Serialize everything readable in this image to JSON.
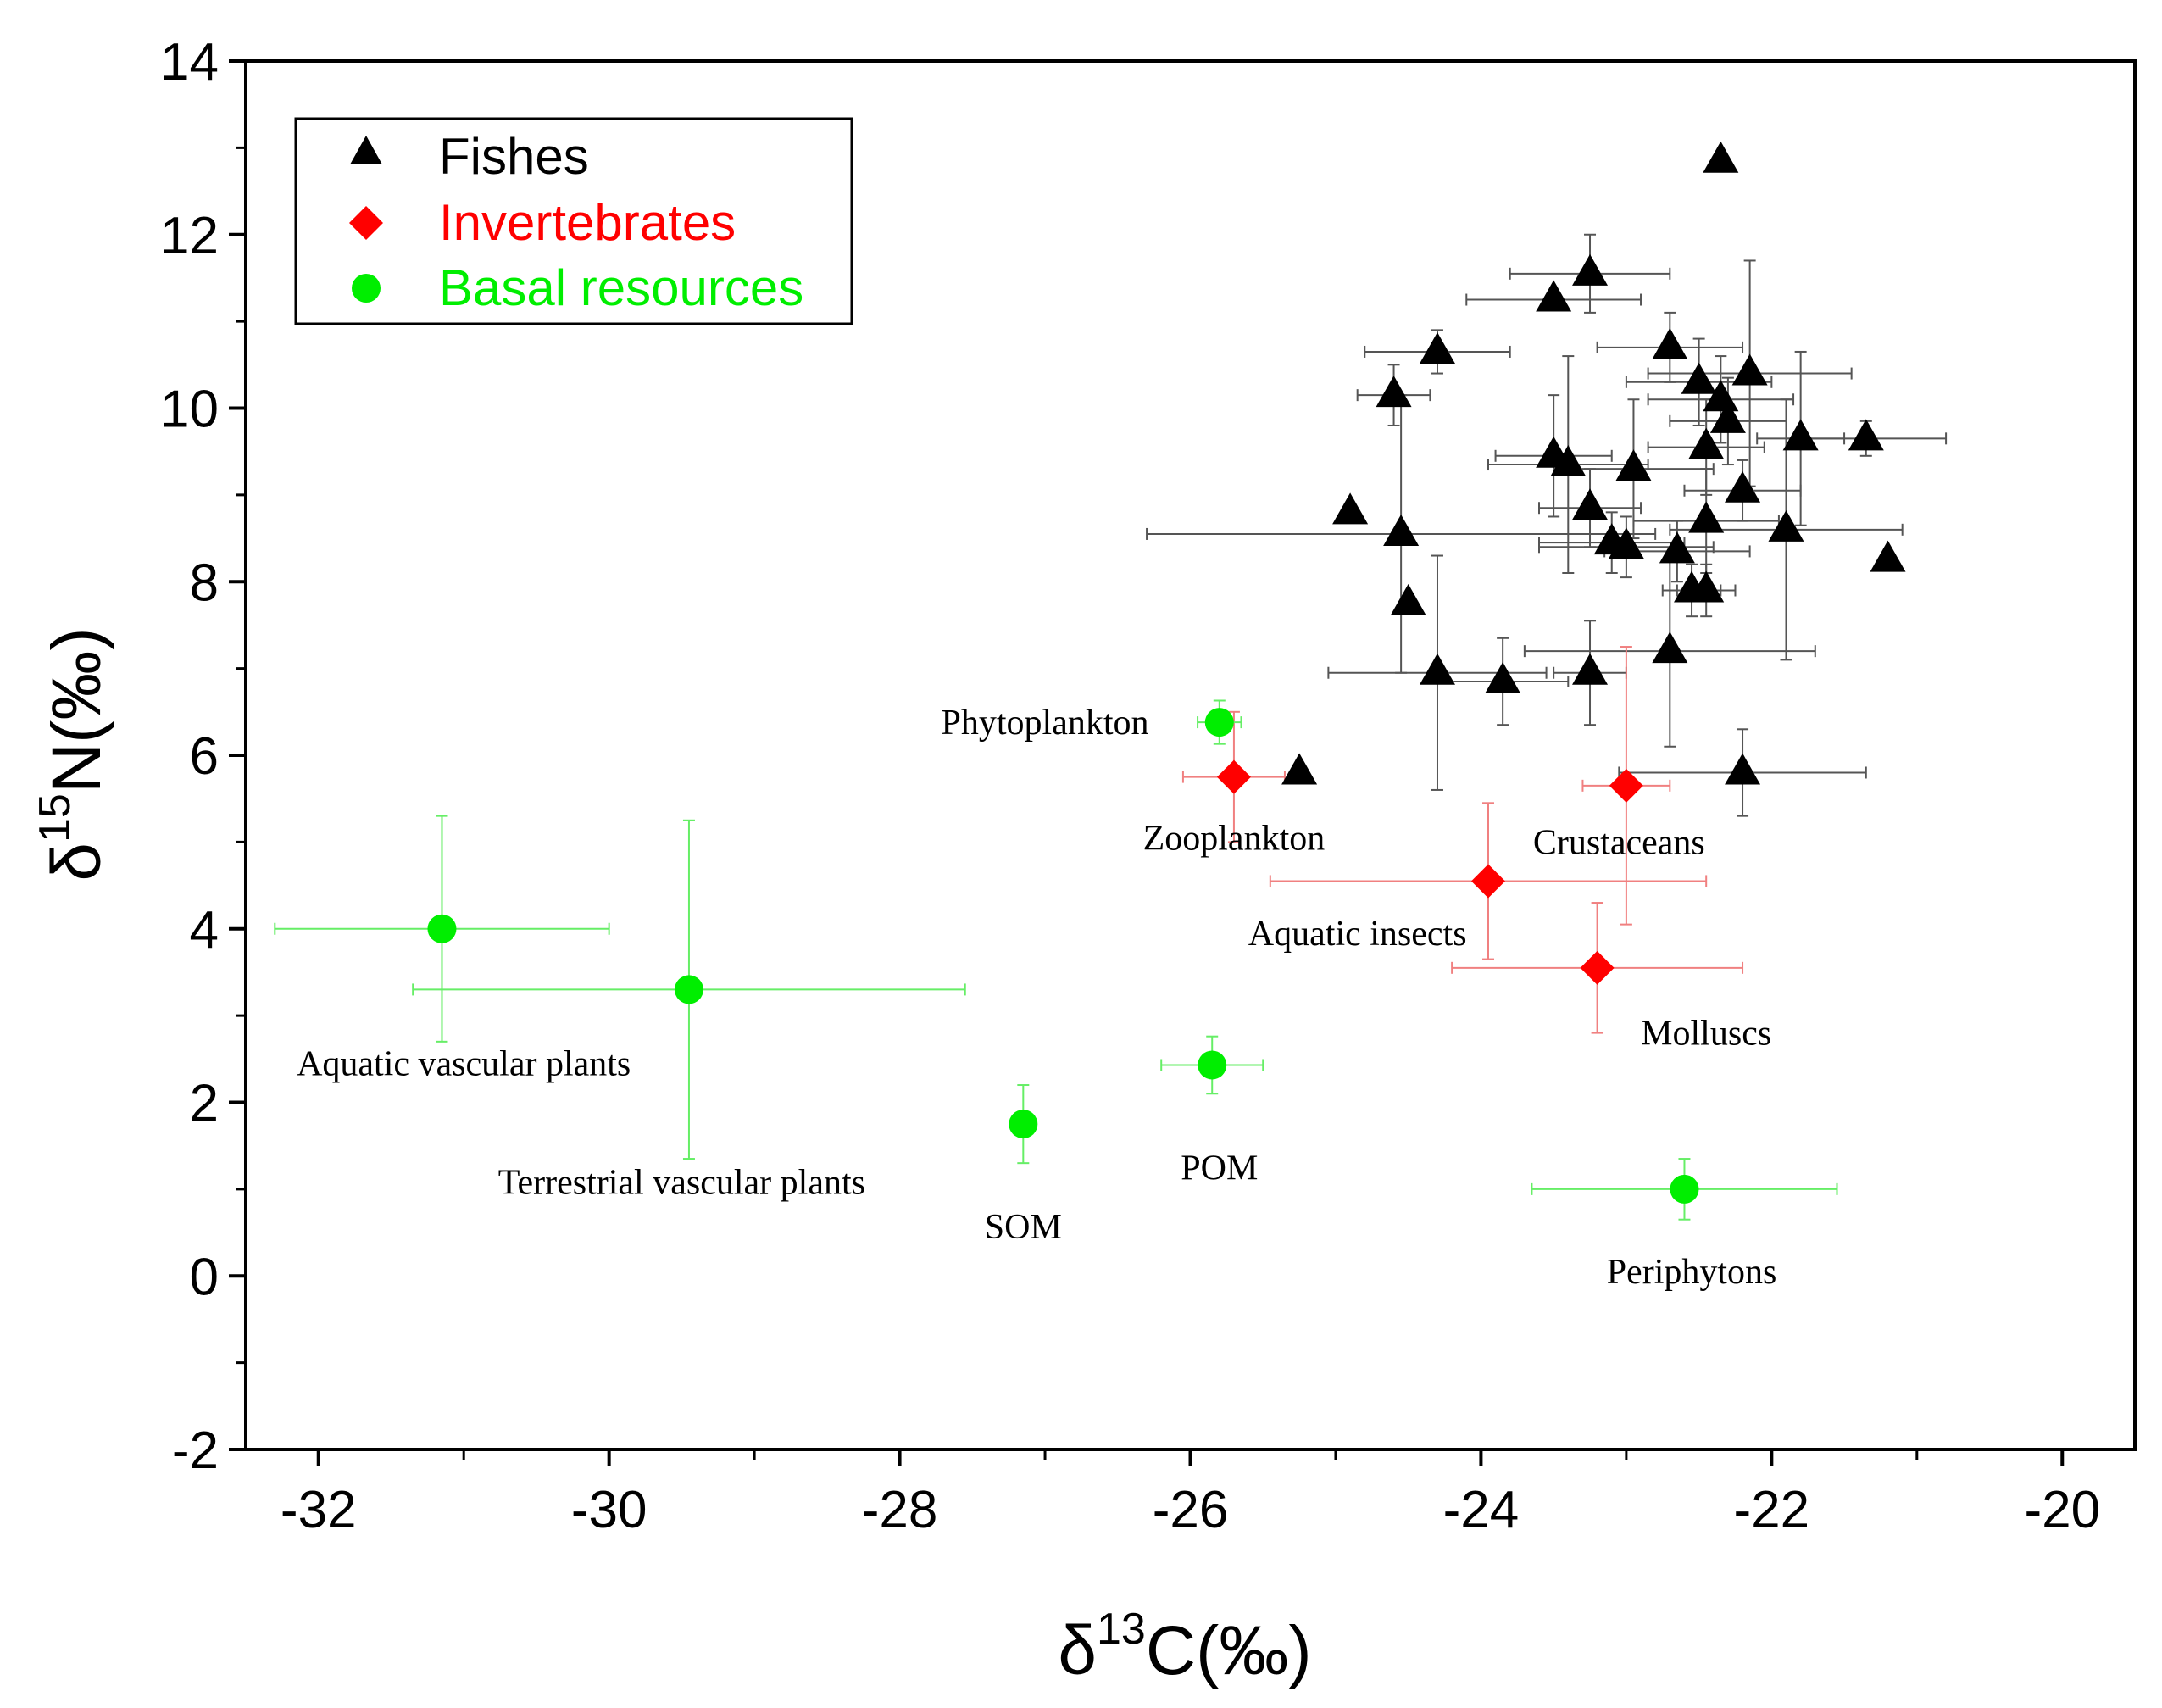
{
  "chart_data": {
    "type": "scatter",
    "title": "",
    "xlabel": {
      "base": "δ",
      "sup": "13",
      "rest": "C(‰)"
    },
    "ylabel": {
      "base": "δ",
      "sup": "15",
      "rest": "N(‰)"
    },
    "xlim": [
      -32.5,
      -19.5
    ],
    "ylim": [
      -2,
      14
    ],
    "xticks": [
      -32,
      -30,
      -28,
      -26,
      -24,
      -22,
      -20
    ],
    "yticks": [
      -2,
      0,
      2,
      4,
      6,
      8,
      10,
      12,
      14
    ],
    "xtick_labels": [
      "-32",
      "-30",
      "-28",
      "-26",
      "-24",
      "-22",
      "-20"
    ],
    "ytick_labels": [
      "-2",
      "0",
      "2",
      "4",
      "6",
      "8",
      "10",
      "12",
      "14"
    ],
    "legend_position": "top-left",
    "colors": {
      "fishes": "#000000",
      "invertebrates": "#ff0000",
      "basal": "#00ee00",
      "fish_err": "#555555",
      "inv_err": "#f08080",
      "basal_err": "#66ee66"
    },
    "series": [
      {
        "name": "Fishes",
        "marker": "triangle",
        "points": [
          {
            "x": -22.35,
            "y": 12.85,
            "xerr": 0,
            "yerr": 0
          },
          {
            "x": -23.25,
            "y": 11.55,
            "xerr": 0.55,
            "yerr": 0.45
          },
          {
            "x": -23.5,
            "y": 11.25,
            "xerr": 0.6,
            "yerr": 0
          },
          {
            "x": -24.3,
            "y": 10.65,
            "xerr": 0.5,
            "yerr": 0.25
          },
          {
            "x": -24.6,
            "y": 10.15,
            "xerr": 0.25,
            "yerr": 0.35
          },
          {
            "x": -22.7,
            "y": 10.7,
            "xerr": 0.5,
            "yerr": 0.4
          },
          {
            "x": -22.5,
            "y": 10.3,
            "xerr": 0.5,
            "yerr": 0.5
          },
          {
            "x": -22.35,
            "y": 10.1,
            "xerr": 0.5,
            "yerr": 0.5
          },
          {
            "x": -22.15,
            "y": 10.4,
            "xerr": 0.7,
            "yerr": 1.3
          },
          {
            "x": -22.3,
            "y": 9.85,
            "xerr": 0.4,
            "yerr": 0.5
          },
          {
            "x": -22.45,
            "y": 9.55,
            "xerr": 0.4,
            "yerr": 0.55
          },
          {
            "x": -21.8,
            "y": 9.65,
            "xerr": 0.3,
            "yerr": 1.0
          },
          {
            "x": -21.35,
            "y": 9.65,
            "xerr": 0.55,
            "yerr": 0.2
          },
          {
            "x": -23.5,
            "y": 9.45,
            "xerr": 0.4,
            "yerr": 0.7
          },
          {
            "x": -23.4,
            "y": 9.35,
            "xerr": 0.55,
            "yerr": 1.25
          },
          {
            "x": -22.95,
            "y": 9.3,
            "xerr": 0.55,
            "yerr": 0.8
          },
          {
            "x": -23.25,
            "y": 8.85,
            "xerr": 0.35,
            "yerr": 0.45
          },
          {
            "x": -22.2,
            "y": 9.05,
            "xerr": 0.4,
            "yerr": 0.35
          },
          {
            "x": -22.45,
            "y": 8.7,
            "xerr": 0.5,
            "yerr": 0.6
          },
          {
            "x": -24.9,
            "y": 8.8,
            "xerr": 0,
            "yerr": 0
          },
          {
            "x": -24.55,
            "y": 8.55,
            "xerr": 1.75,
            "yerr": 1.6
          },
          {
            "x": -21.9,
            "y": 8.6,
            "xerr": 0.8,
            "yerr": 1.5
          },
          {
            "x": -23.1,
            "y": 8.45,
            "xerr": 0.5,
            "yerr": 0.35
          },
          {
            "x": -23.0,
            "y": 8.4,
            "xerr": 0.6,
            "yerr": 0.35
          },
          {
            "x": -22.65,
            "y": 8.35,
            "xerr": 0.5,
            "yerr": 0.35
          },
          {
            "x": -21.2,
            "y": 8.25,
            "xerr": 0,
            "yerr": 0
          },
          {
            "x": -22.55,
            "y": 7.9,
            "xerr": 0.2,
            "yerr": 0.3
          },
          {
            "x": -22.45,
            "y": 7.9,
            "xerr": 0.2,
            "yerr": 0.3
          },
          {
            "x": -24.5,
            "y": 7.75,
            "xerr": 0,
            "yerr": 0
          },
          {
            "x": -22.7,
            "y": 7.2,
            "xerr": 1.0,
            "yerr": 1.1
          },
          {
            "x": -24.3,
            "y": 6.95,
            "xerr": 0.75,
            "yerr": 1.35
          },
          {
            "x": -23.85,
            "y": 6.85,
            "xerr": 0.45,
            "yerr": 0.5
          },
          {
            "x": -23.25,
            "y": 6.95,
            "xerr": 0.25,
            "yerr": 0.6
          },
          {
            "x": -25.25,
            "y": 5.8,
            "xerr": 0,
            "yerr": 0
          },
          {
            "x": -22.2,
            "y": 5.8,
            "xerr": 0.85,
            "yerr": 0.5
          }
        ]
      },
      {
        "name": "Invertebrates",
        "marker": "diamond",
        "points": [
          {
            "x": -25.7,
            "y": 5.75,
            "xerr": 0.35,
            "yerr": 0.75,
            "label": "Zooplankton"
          },
          {
            "x": -23.0,
            "y": 5.65,
            "xerr": 0.3,
            "yerr": 1.6,
            "label": "Crustaceans"
          },
          {
            "x": -23.95,
            "y": 4.55,
            "xerr": 1.5,
            "yerr": 0.9,
            "label": "Aquatic insects"
          },
          {
            "x": -23.2,
            "y": 3.55,
            "xerr": 1.0,
            "yerr": 0.75,
            "label": "Molluscs"
          }
        ]
      },
      {
        "name": "Basal resources",
        "marker": "circle",
        "points": [
          {
            "x": -25.8,
            "y": 6.38,
            "xerr": 0.15,
            "yerr": 0.25,
            "label": "Phytoplankton"
          },
          {
            "x": -31.15,
            "y": 4.0,
            "xerr": 1.15,
            "yerr": 1.3,
            "label": "Aquatic vascular plants"
          },
          {
            "x": -29.45,
            "y": 3.3,
            "xerr": 1.9,
            "yerr": 1.95,
            "label": "Terrestrial vascular plants"
          },
          {
            "x": -25.85,
            "y": 2.43,
            "xerr": 0.35,
            "yerr": 0.33,
            "label": "POM"
          },
          {
            "x": -27.15,
            "y": 1.75,
            "xerr": 0,
            "yerr": 0.45,
            "label": "SOM"
          },
          {
            "x": -22.6,
            "y": 1.0,
            "xerr": 1.05,
            "yerr": 0.35,
            "label": "Periphytons"
          }
        ]
      }
    ],
    "annotations": [
      {
        "text": "Phytoplankton",
        "x": -27.0,
        "y": 6.38,
        "anchor": "middle"
      },
      {
        "text": "Zooplankton",
        "x": -25.7,
        "y": 5.05,
        "anchor": "middle"
      },
      {
        "text": "Crustaceans",
        "x": -23.05,
        "y": 5.0,
        "anchor": "middle"
      },
      {
        "text": "Aquatic insects",
        "x": -24.85,
        "y": 3.95,
        "anchor": "middle"
      },
      {
        "text": "Molluscs",
        "x": -22.45,
        "y": 2.8,
        "anchor": "middle"
      },
      {
        "text": "Aquatic vascular plants",
        "x": -31.0,
        "y": 2.45,
        "anchor": "middle"
      },
      {
        "text": "Terrestrial vascular plants",
        "x": -29.5,
        "y": 1.08,
        "anchor": "middle"
      },
      {
        "text": "POM",
        "x": -25.8,
        "y": 1.25,
        "anchor": "middle"
      },
      {
        "text": "SOM",
        "x": -27.15,
        "y": 0.57,
        "anchor": "middle"
      },
      {
        "text": "Periphytons",
        "x": -22.55,
        "y": 0.05,
        "anchor": "middle"
      }
    ]
  }
}
